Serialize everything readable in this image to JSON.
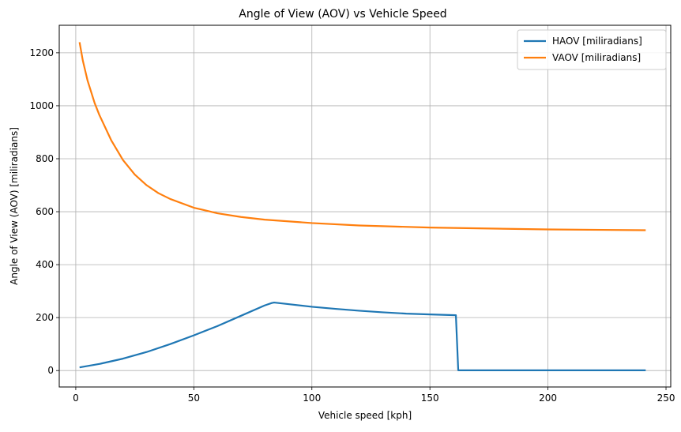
{
  "chart_data": {
    "type": "line",
    "title": "Angle of View (AOV) vs Vehicle Speed",
    "xlabel": "Vehicle speed [kph]",
    "ylabel": "Angle of View (AOV) [miliradians]",
    "xlim": [
      -7,
      252
    ],
    "ylim": [
      -62,
      1304
    ],
    "xticks": [
      0,
      50,
      100,
      150,
      200,
      250
    ],
    "yticks": [
      0,
      200,
      400,
      600,
      800,
      1000,
      1200
    ],
    "grid": true,
    "legend_position": "top-right",
    "series": [
      {
        "name": "HAOV [miliradians]",
        "color": "#1f77b4",
        "points": [
          [
            1.6,
            12
          ],
          [
            10,
            25
          ],
          [
            20,
            45
          ],
          [
            30,
            70
          ],
          [
            40,
            100
          ],
          [
            50,
            133
          ],
          [
            60,
            168
          ],
          [
            70,
            207
          ],
          [
            80,
            246
          ],
          [
            83,
            255
          ],
          [
            84,
            257
          ],
          [
            90,
            251
          ],
          [
            100,
            241
          ],
          [
            110,
            233
          ],
          [
            120,
            226
          ],
          [
            130,
            220
          ],
          [
            140,
            215
          ],
          [
            150,
            212
          ],
          [
            161,
            209
          ],
          [
            162,
            1
          ],
          [
            170,
            1
          ],
          [
            200,
            1
          ],
          [
            241.4,
            1
          ]
        ]
      },
      {
        "name": "VAOV [miliradians]",
        "color": "#ff7f0e",
        "points": [
          [
            1.6,
            1240
          ],
          [
            3,
            1170
          ],
          [
            5,
            1095
          ],
          [
            8,
            1010
          ],
          [
            10,
            965
          ],
          [
            15,
            870
          ],
          [
            20,
            795
          ],
          [
            25,
            740
          ],
          [
            30,
            700
          ],
          [
            35,
            670
          ],
          [
            40,
            648
          ],
          [
            50,
            615
          ],
          [
            60,
            594
          ],
          [
            70,
            580
          ],
          [
            80,
            570
          ],
          [
            100,
            557
          ],
          [
            120,
            548
          ],
          [
            150,
            540
          ],
          [
            200,
            533
          ],
          [
            241.4,
            530
          ]
        ]
      }
    ]
  }
}
